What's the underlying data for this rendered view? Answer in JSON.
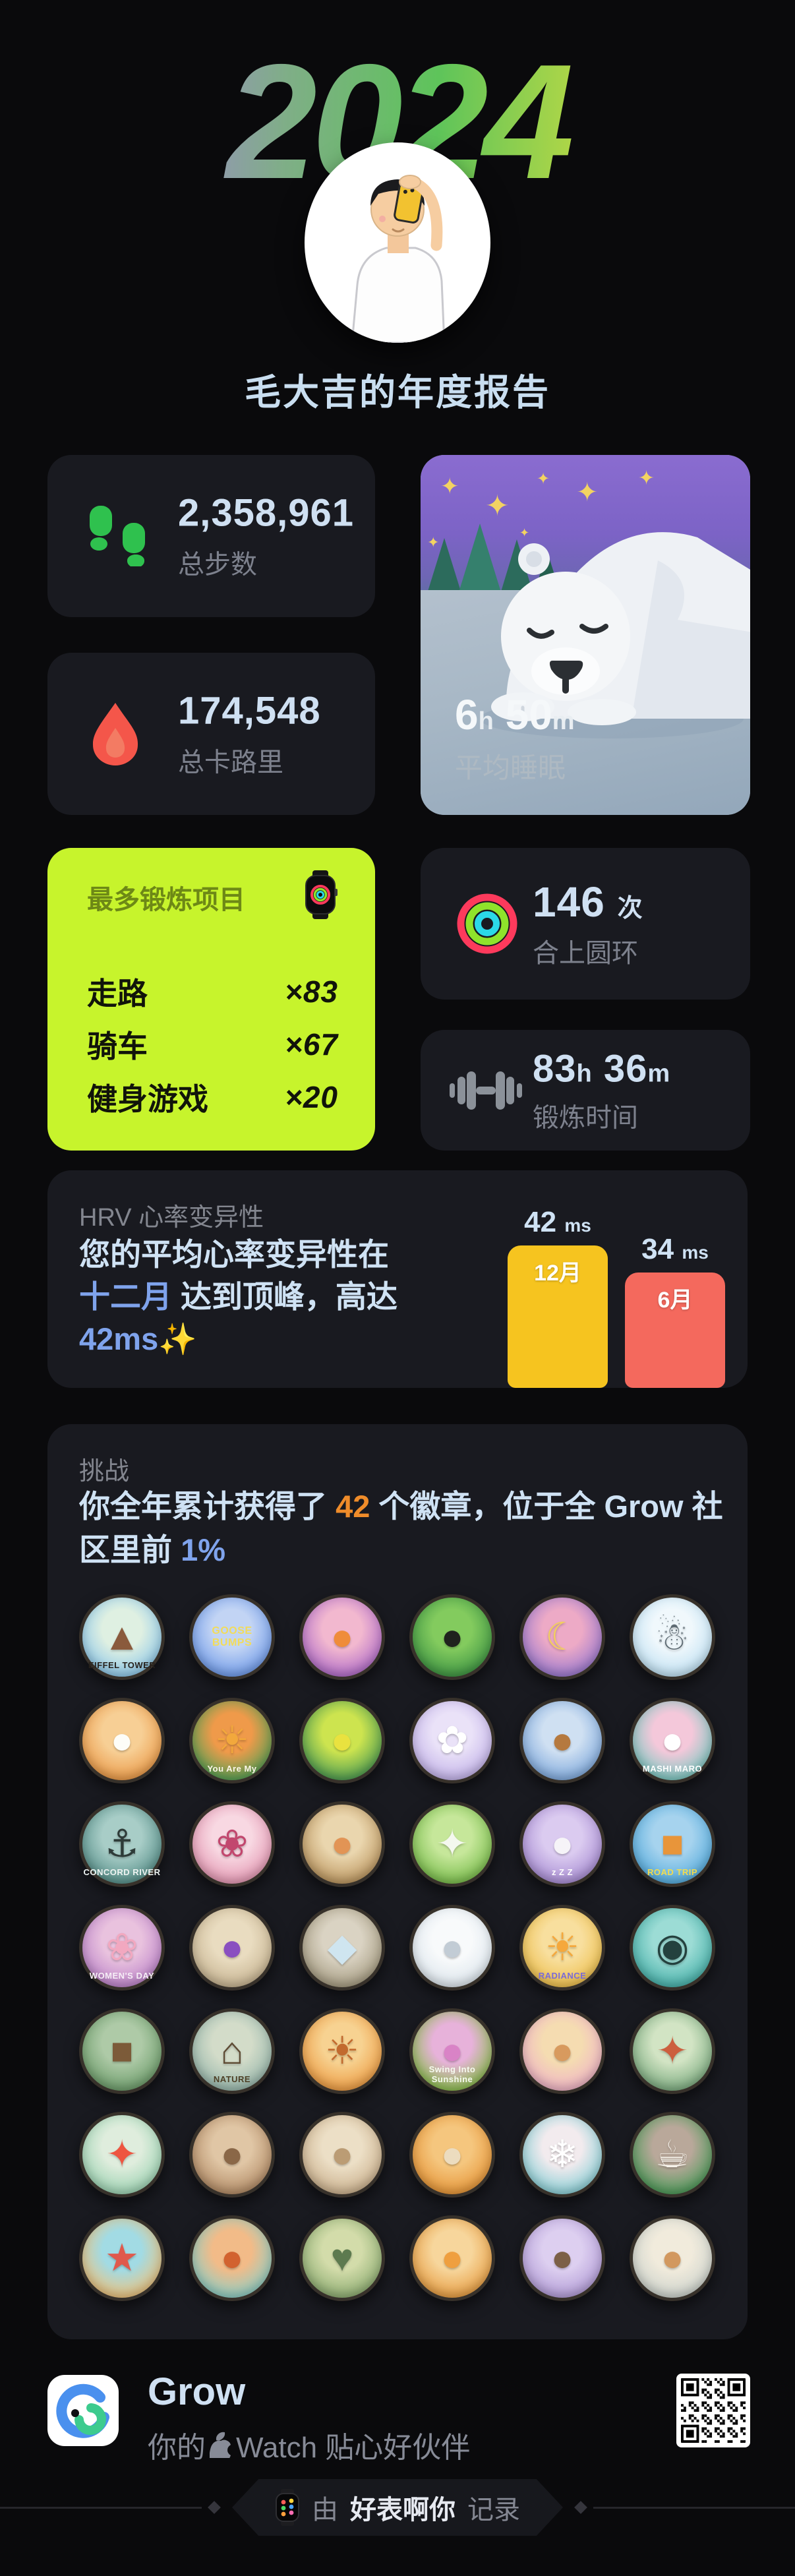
{
  "hero": {
    "year": "2024",
    "title": "毛大吉的年度报告"
  },
  "stats": {
    "steps": {
      "value": "2,358,961",
      "label": "总步数"
    },
    "calories": {
      "value": "174,548",
      "label": "总卡路里"
    },
    "sleep": {
      "h": "6",
      "h_unit": "h",
      "m": "50",
      "m_unit": "m",
      "label": "平均睡眠"
    },
    "rings": {
      "value": "146",
      "unit": "次",
      "label": "合上圆环"
    },
    "exercise": {
      "h": "83",
      "h_unit": "h",
      "m": "36",
      "m_unit": "m",
      "label": "锻炼时间"
    }
  },
  "workouts": {
    "title": "最多锻炼项目",
    "times_symbol": "×",
    "items": [
      {
        "name": "走路",
        "count": "83"
      },
      {
        "name": "骑车",
        "count": "67"
      },
      {
        "name": "健身游戏",
        "count": "20"
      }
    ]
  },
  "hrv": {
    "label": "HRV 心率变异性",
    "line1": "您的平均心率变异性在",
    "accent_month": "十二月",
    "line2_rest": " 达到顶峰，高达",
    "accent_value": "42ms",
    "sparkle": "✨",
    "chart": {
      "max": 42,
      "bars": [
        {
          "month": "12月",
          "value": 42,
          "unit": "ms",
          "color": "#f6c41f"
        },
        {
          "month": "6月",
          "value": 34,
          "unit": "ms",
          "color": "#f4695d"
        }
      ]
    }
  },
  "chart_data": {
    "type": "bar",
    "title": "HRV 心率变异性",
    "categories": [
      "12月",
      "6月"
    ],
    "values": [
      42,
      34
    ],
    "unit": "ms",
    "colors": [
      "#f6c41f",
      "#f4695d"
    ],
    "ylim": [
      0,
      42
    ]
  },
  "challenge": {
    "label": "挑战",
    "pre": "你全年累计获得了 ",
    "count": "42",
    "mid": " 个徽章，位于全 Grow 社区里前 ",
    "pct": "1%"
  },
  "badges": [
    {
      "n": "eiffel-tower",
      "t": "EIFFEL TOWER",
      "tc": "#26211c",
      "g": "▲",
      "gc": "#8a5a3c",
      "c1": "#8ec7e8",
      "c2": "#dff0e2"
    },
    {
      "n": "goose-bumps",
      "t": "GOOSE BUMPS",
      "tc": "#f2dc5a",
      "g": "",
      "gc": "",
      "c1": "#6f9ae8",
      "c2": "#c2d4f4"
    },
    {
      "n": "halloween-pumpkin",
      "t": "",
      "tc": "",
      "g": "●",
      "gc": "#ef8c3a",
      "c1": "#b06cc8",
      "c2": "#f2b8cf"
    },
    {
      "n": "black-cat-bush",
      "t": "",
      "tc": "",
      "g": "●",
      "gc": "#1f231e",
      "c1": "#3f9544",
      "c2": "#83cb5e"
    },
    {
      "n": "tropical-night",
      "t": "",
      "tc": "",
      "g": "☾",
      "gc": "#f3cf5e",
      "c1": "#9a79cf",
      "c2": "#edaac6"
    },
    {
      "n": "snowman",
      "t": "",
      "tc": "",
      "g": "☃",
      "gc": "#5d6a72",
      "c1": "#bfe0f2",
      "c2": "#f0f8fc"
    },
    {
      "n": "sleeping-sheep",
      "t": "",
      "tc": "",
      "g": "●",
      "gc": "#fdfdf8",
      "c1": "#ea9a49",
      "c2": "#f7cf95"
    },
    {
      "n": "you-are-my-sunshine",
      "t": "You Are My",
      "tc": "#fdf6e8",
      "g": "☀",
      "gc": "#f2a83c",
      "c1": "#55a055",
      "c2": "#ef9a4a"
    },
    {
      "n": "tennis-smiley",
      "t": "",
      "tc": "",
      "g": "●",
      "gc": "#e9e23f",
      "c1": "#4d9b52",
      "c2": "#cde44f"
    },
    {
      "n": "daisy-flower",
      "t": "",
      "tc": "",
      "g": "✿",
      "gc": "#ffffff",
      "c1": "#c2b2e8",
      "c2": "#eae2f8"
    },
    {
      "n": "gingerbread-man",
      "t": "",
      "tc": "",
      "g": "●",
      "gc": "#b5793f",
      "c1": "#7fa9dc",
      "c2": "#cfe0f2"
    },
    {
      "n": "birthday-rabbit",
      "t": "MASHI MARO",
      "tc": "#ffffff",
      "g": "●",
      "gc": "#ffffff",
      "c1": "#7ac7c0",
      "c2": "#f4c8da"
    },
    {
      "n": "concord-river",
      "t": "CONCORD RIVER",
      "tc": "#eef4f2",
      "g": "⚓",
      "gc": "#2e3b38",
      "c1": "#578f89",
      "c2": "#a8cdc7"
    },
    {
      "n": "cherry-blossom",
      "t": "",
      "tc": "",
      "g": "❀",
      "gc": "#c2476e",
      "c1": "#e397b2",
      "c2": "#f8d8e2"
    },
    {
      "n": "skateboard-dog",
      "t": "",
      "tc": "",
      "g": "●",
      "gc": "#e29455",
      "c1": "#bb9660",
      "c2": "#ead6ae"
    },
    {
      "n": "touch-grass",
      "t": "",
      "tc": "",
      "g": "✦",
      "gc": "#f4f8ee",
      "c1": "#79bc4c",
      "c2": "#c6e79a"
    },
    {
      "n": "sleeping-panda",
      "t": "z Z Z",
      "tc": "#ffffff",
      "g": "●",
      "gc": "#f6f4f8",
      "c1": "#a78cd2",
      "c2": "#dbcbf0"
    },
    {
      "n": "road-trip",
      "t": "ROAD TRIP",
      "tc": "#f2dc4e",
      "g": "■",
      "gc": "#e8953a",
      "c1": "#55abdc",
      "c2": "#a6d3ee"
    },
    {
      "n": "womens-day",
      "t": "WOMEN'S DAY",
      "tc": "#f6eef6",
      "g": "❀",
      "gc": "#f2a8c0",
      "c1": "#bc84c9",
      "c2": "#e9c2de"
    },
    {
      "n": "grapes",
      "t": "",
      "tc": "",
      "g": "●",
      "gc": "#8a4fc0",
      "c1": "#c6b391",
      "c2": "#e9dcc0"
    },
    {
      "n": "glass-pyramid",
      "t": "",
      "tc": "",
      "g": "◆",
      "gc": "#cfe5f0",
      "c1": "#a59b81",
      "c2": "#dad3c3"
    },
    {
      "n": "seal-wave",
      "t": "",
      "tc": "",
      "g": "●",
      "gc": "#c2ccd5",
      "c1": "#dce5ec",
      "c2": "#f8fafb"
    },
    {
      "n": "radiance-sun",
      "t": "RADIANCE",
      "tc": "#7a6ad8",
      "g": "☀",
      "gc": "#f5a83c",
      "c1": "#edbf4e",
      "c2": "#f8df9e"
    },
    {
      "n": "bird-binoculars",
      "t": "",
      "tc": "",
      "g": "◉",
      "gc": "#24413e",
      "c1": "#47b0a9",
      "c2": "#9cdcd5"
    },
    {
      "n": "backpack",
      "t": "",
      "tc": "",
      "g": "■",
      "gc": "#7c5b39",
      "c1": "#6d9c6b",
      "c2": "#aecaa7"
    },
    {
      "n": "nature-cabin",
      "t": "NATURE",
      "tc": "#4d4026",
      "g": "⌂",
      "gc": "#5e4b34",
      "c1": "#97b6ab",
      "c2": "#d3dcc9"
    },
    {
      "n": "smiling-sun-sea",
      "t": "",
      "tc": "",
      "g": "☀",
      "gc": "#c26a2e",
      "c1": "#ec9c44",
      "c2": "#f7d291"
    },
    {
      "n": "disco-sunshine",
      "t": "Swing Into Sunshine",
      "tc": "#f6fbef",
      "g": "●",
      "gc": "#d983c6",
      "c1": "#8abd4d",
      "c2": "#e7b2da"
    },
    {
      "n": "otter-blossom",
      "t": "",
      "tc": "",
      "g": "●",
      "gc": "#d89a5e",
      "c1": "#eeb3c6",
      "c2": "#f5dcb1"
    },
    {
      "n": "dragon-map",
      "t": "",
      "tc": "",
      "g": "✦",
      "gc": "#cc5f3e",
      "c1": "#7cab80",
      "c2": "#d2e4c4"
    },
    {
      "n": "olympic-torch",
      "t": "",
      "tc": "",
      "g": "✦",
      "gc": "#ee5540",
      "c1": "#9cd2b2",
      "c2": "#dfeddd"
    },
    {
      "n": "mona-lisa",
      "t": "",
      "tc": "",
      "g": "●",
      "gc": "#8a6747",
      "c1": "#b28b66",
      "c2": "#e0c6a5"
    },
    {
      "n": "sleeping-dog",
      "t": "",
      "tc": "",
      "g": "●",
      "gc": "#bb9c74",
      "c1": "#cab08d",
      "c2": "#ecdfc6"
    },
    {
      "n": "taiko-drum",
      "t": "",
      "tc": "",
      "g": "●",
      "gc": "#ecdcbf",
      "c1": "#e69639",
      "c2": "#f5c67e"
    },
    {
      "n": "ski-penguin",
      "t": "",
      "tc": "",
      "g": "❄",
      "gc": "#ffffff",
      "c1": "#89ced5",
      "c2": "#f2ebee"
    },
    {
      "n": "tea-cup",
      "t": "",
      "tc": "",
      "g": "☕",
      "gc": "#f6f2ea",
      "c1": "#4c9a59",
      "c2": "#b9a89a"
    },
    {
      "n": "beach-starfish",
      "t": "",
      "tc": "",
      "g": "★",
      "gc": "#e0594c",
      "c1": "#eec27c",
      "c2": "#a2dbe4"
    },
    {
      "n": "red-panda-apple",
      "t": "",
      "tc": "",
      "g": "●",
      "gc": "#d2622f",
      "c1": "#8ccec6",
      "c2": "#f2bb88"
    },
    {
      "n": "earth-heart",
      "t": "",
      "tc": "",
      "g": "♥",
      "gc": "#5d7a4f",
      "c1": "#8dac72",
      "c2": "#d3dcaa"
    },
    {
      "n": "shiba-bone",
      "t": "",
      "tc": "",
      "g": "●",
      "gc": "#ef9f3f",
      "c1": "#e69d43",
      "c2": "#f7d69c"
    },
    {
      "n": "hedgehog-sleep",
      "t": "",
      "tc": "",
      "g": "●",
      "gc": "#7c6047",
      "c1": "#b29cd6",
      "c2": "#ddcff0"
    },
    {
      "n": "bucket-hat-dog",
      "t": "",
      "tc": "",
      "g": "●",
      "gc": "#d2985f",
      "c1": "#ccd2cc",
      "c2": "#f1ebdc"
    }
  ],
  "footer": {
    "app_name": "Grow",
    "tagline_pre": "你的",
    "tagline_post": "Watch 贴心好伙伴"
  },
  "ribbon": {
    "by": "由",
    "name": "好表啊你",
    "action": "记录"
  },
  "colors": {
    "bg": "#0a0a0c",
    "card": "#191a20",
    "value_text": "#cfe0f2",
    "label_text": "#7d818d",
    "accent_blue": "#7fa3ec",
    "accent_orange": "#ef8c2a",
    "lime_card": "#c7f42c",
    "bar_yellow": "#f6c41f",
    "bar_red": "#f4695d",
    "steps_green": "#2fc14e",
    "flame_red": "#f4564a"
  }
}
